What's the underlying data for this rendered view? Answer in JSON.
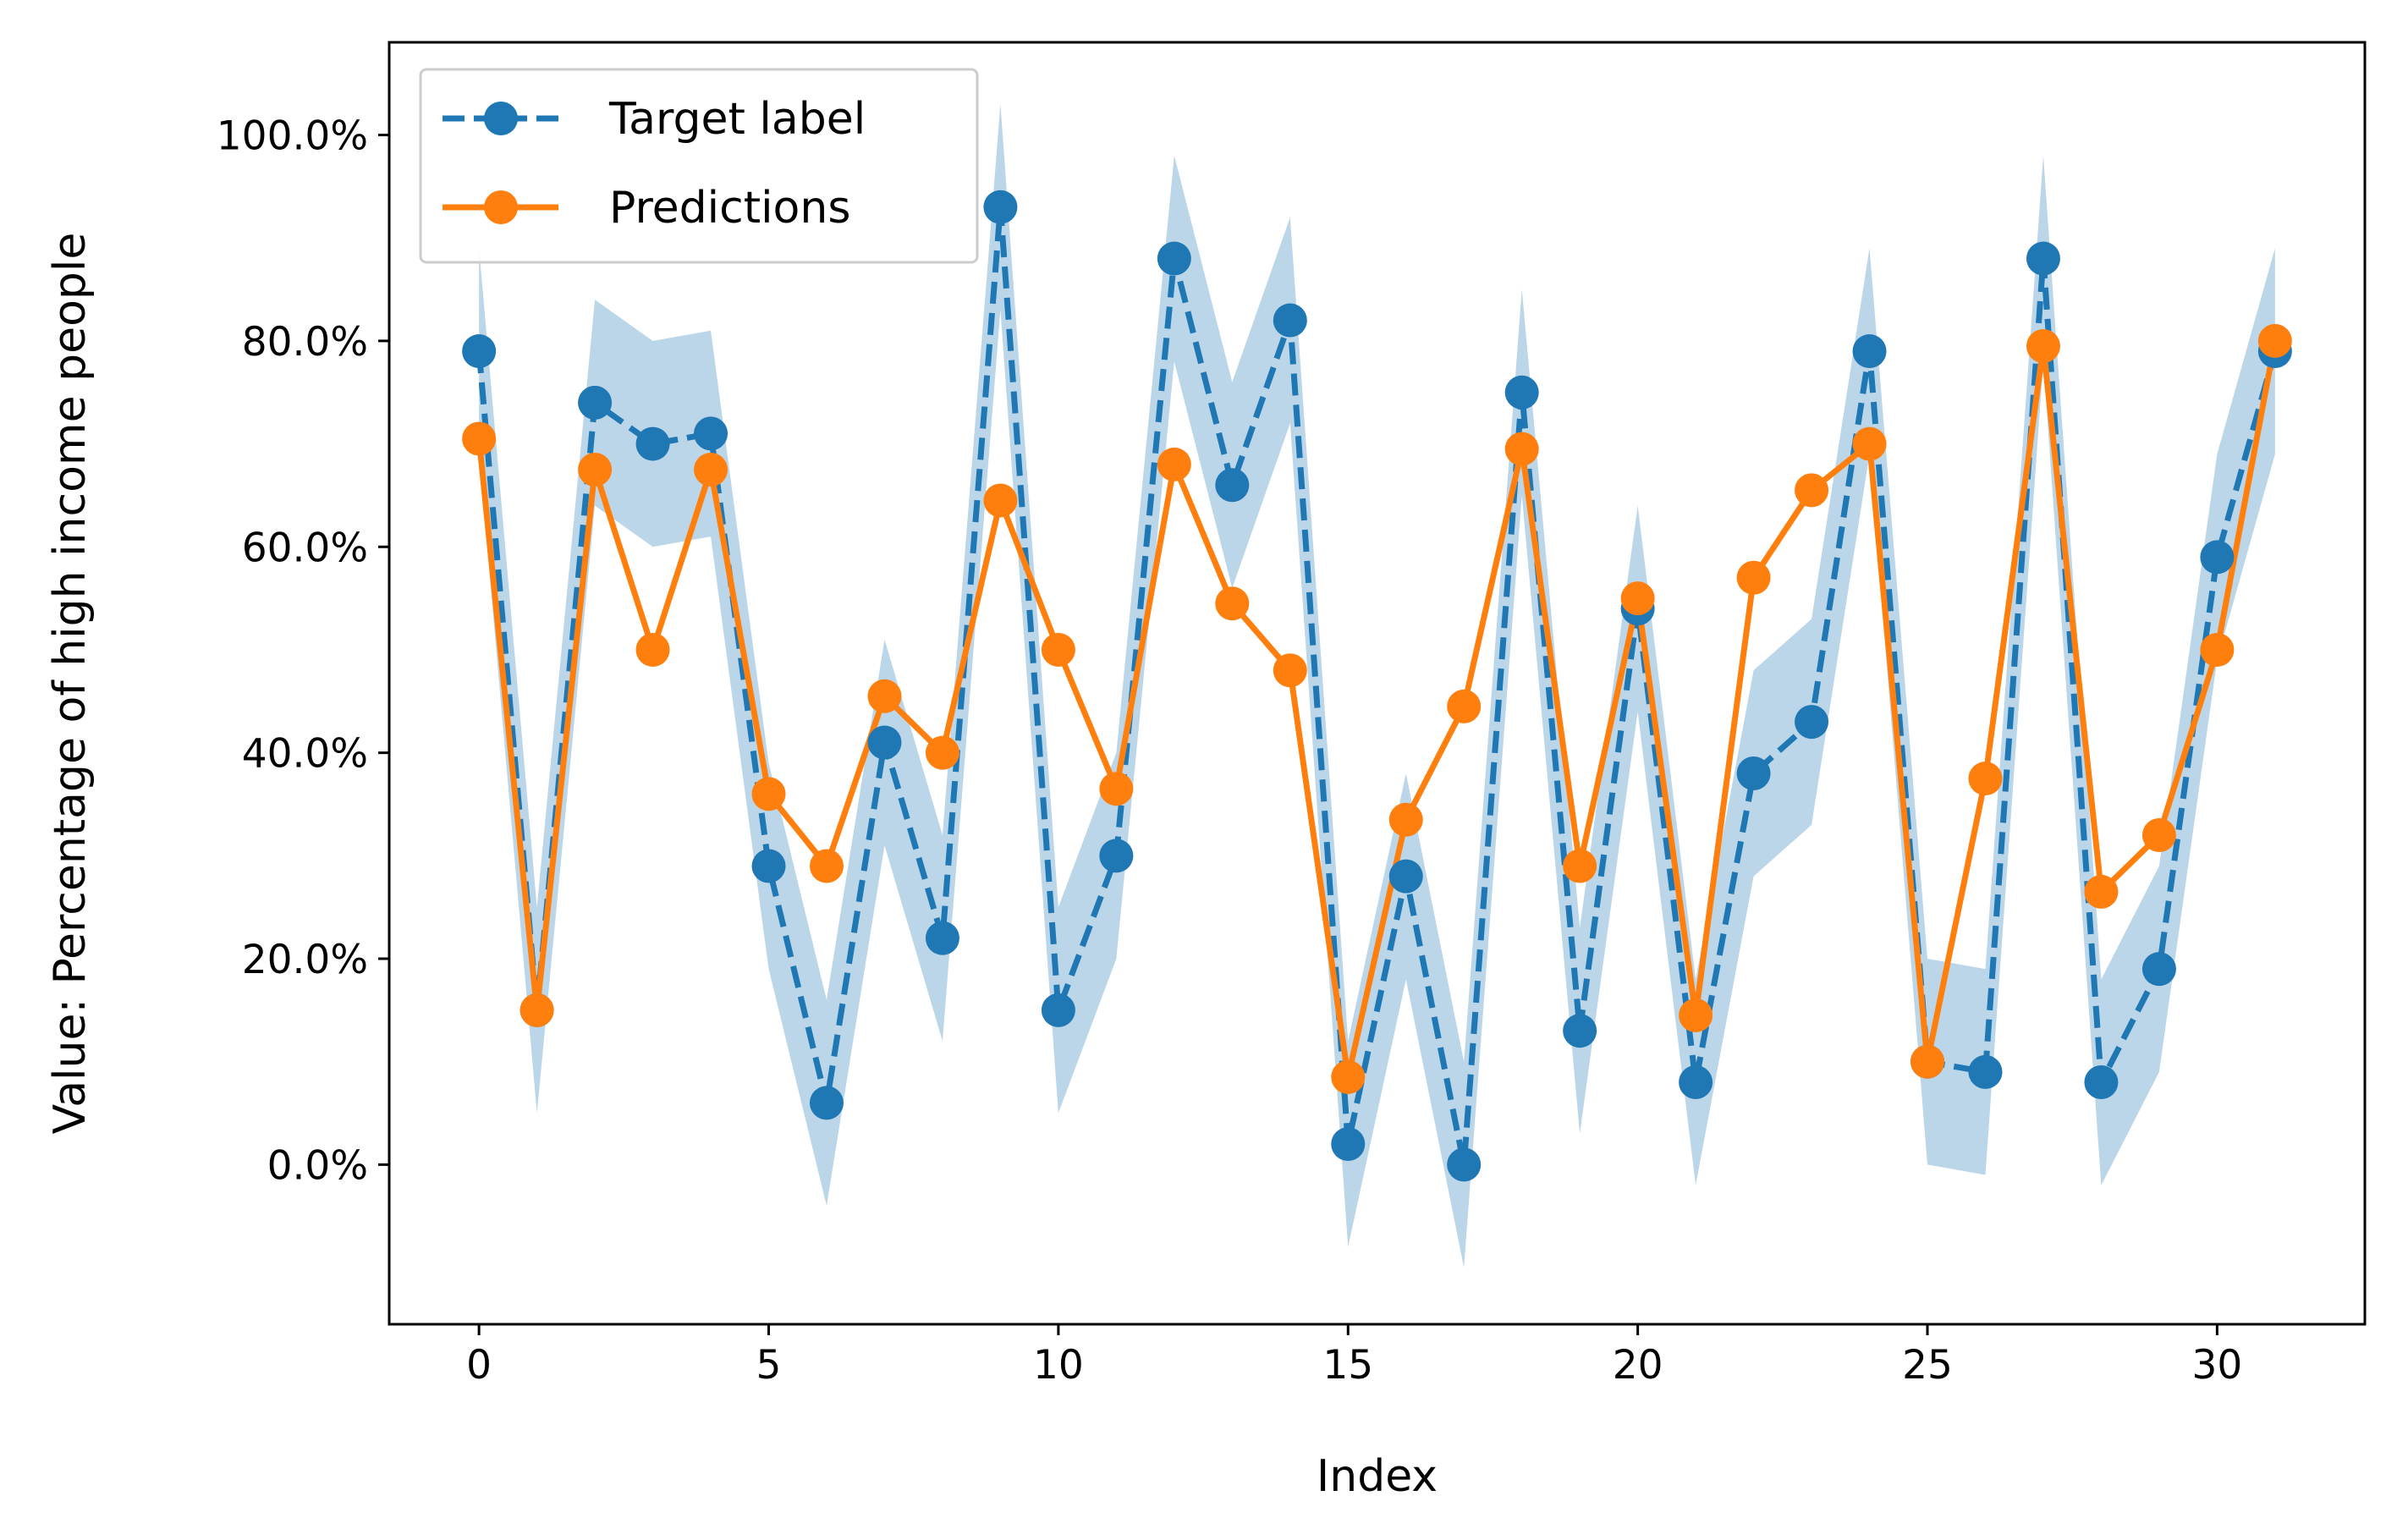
{
  "chart_data": {
    "type": "line",
    "xlabel": "Index",
    "ylabel": "Value: Percentage of high income people",
    "x": [
      0,
      1,
      2,
      3,
      4,
      5,
      6,
      7,
      8,
      9,
      10,
      11,
      12,
      13,
      14,
      15,
      16,
      17,
      18,
      19,
      20,
      21,
      22,
      23,
      24,
      25,
      26,
      27,
      28,
      29,
      30,
      31
    ],
    "xlim": [
      -1.55,
      32.55
    ],
    "ylim": [
      -15.5,
      109.0
    ],
    "x_ticks": [
      0,
      5,
      10,
      15,
      20,
      25,
      30
    ],
    "x_tick_labels": [
      "0",
      "5",
      "10",
      "15",
      "20",
      "25",
      "30"
    ],
    "y_ticks": [
      0,
      20,
      40,
      60,
      80,
      100
    ],
    "y_tick_labels": [
      "0.0%",
      "20.0%",
      "40.0%",
      "60.0%",
      "80.0%",
      "100.0%"
    ],
    "grid": false,
    "legend_position": "top-left",
    "series": [
      {
        "name": "Target label",
        "color": "#1f77b4",
        "line_style": "dashed",
        "marker": "circle",
        "band": 10,
        "band_color": "#1f77b4",
        "band_opacity": 0.3,
        "values": [
          79,
          15,
          74,
          70,
          71,
          29,
          6,
          41,
          22,
          93,
          15,
          30,
          88,
          66,
          82,
          2,
          28,
          0,
          75,
          13,
          54,
          8,
          38,
          43,
          79,
          10,
          9,
          88,
          8,
          19,
          59,
          79
        ]
      },
      {
        "name": "Predictions",
        "color": "#ff7f0e",
        "line_style": "solid",
        "marker": "circle",
        "values": [
          70.5,
          15,
          67.5,
          50,
          67.5,
          36,
          29,
          45.5,
          40,
          64.5,
          50,
          36.5,
          68,
          54.5,
          48,
          8.5,
          33.5,
          44.5,
          69.5,
          29,
          55,
          14.5,
          57,
          65.5,
          70,
          10,
          37.5,
          79.5,
          26.5,
          32,
          50,
          80
        ]
      }
    ]
  }
}
